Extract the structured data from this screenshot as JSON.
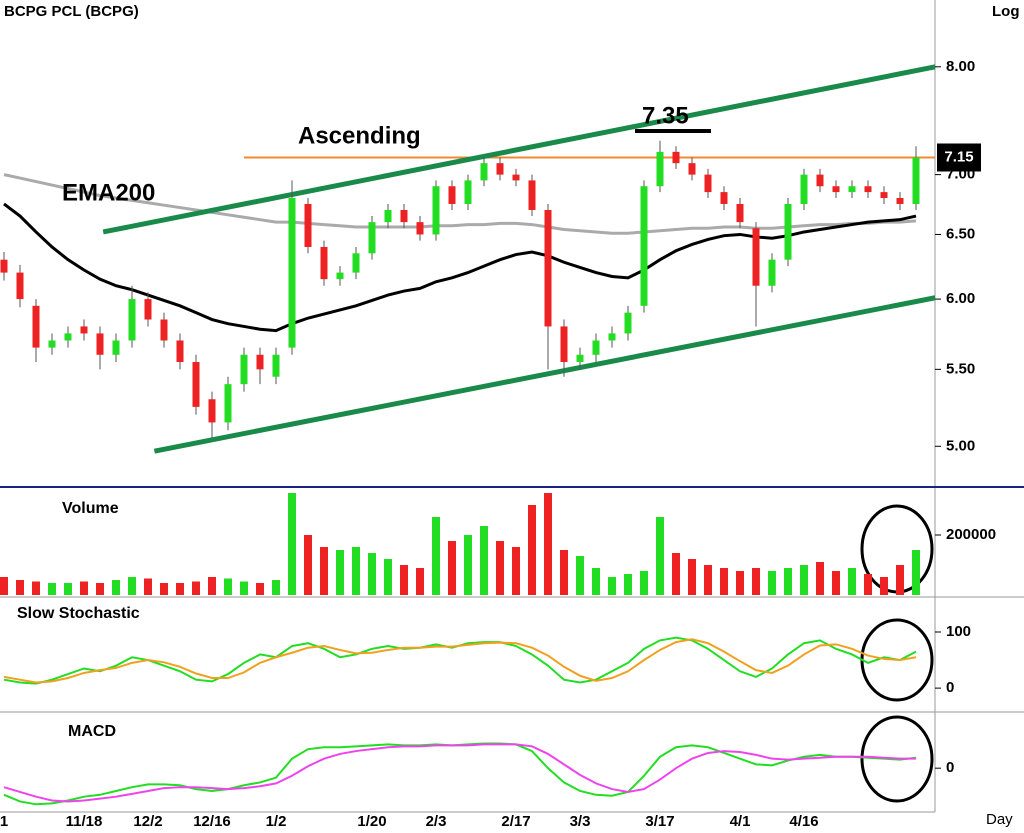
{
  "chart_data": [
    {
      "type": "candlestick",
      "title": "BCPG PCL (BCPG)",
      "scale_label": "Log",
      "log": true,
      "x_label": "Day",
      "categories": [
        "1",
        null,
        null,
        null,
        null,
        "11/18",
        null,
        null,
        null,
        "12/2",
        null,
        null,
        null,
        "12/16",
        null,
        null,
        null,
        "1/2",
        null,
        null,
        null,
        null,
        null,
        "1/20",
        null,
        null,
        null,
        "2/3",
        null,
        null,
        null,
        null,
        "2/17",
        null,
        null,
        null,
        "3/3",
        null,
        null,
        null,
        null,
        "3/17",
        null,
        null,
        null,
        null,
        "4/1",
        null,
        null,
        null,
        "4/16",
        null,
        null,
        null,
        null,
        null,
        null,
        null
      ],
      "open": [
        6.3,
        6.2,
        5.95,
        5.65,
        5.7,
        5.8,
        5.75,
        5.6,
        5.7,
        6.0,
        5.85,
        5.7,
        5.55,
        5.3,
        5.15,
        5.4,
        5.6,
        5.45,
        5.65,
        6.75,
        6.4,
        6.15,
        6.2,
        6.35,
        6.6,
        6.7,
        6.6,
        6.5,
        6.9,
        6.75,
        6.95,
        7.1,
        7.0,
        6.95,
        6.7,
        5.8,
        5.55,
        5.6,
        5.7,
        5.75,
        5.95,
        6.9,
        7.2,
        7.1,
        7.0,
        6.85,
        6.75,
        6.55,
        6.1,
        6.3,
        6.75,
        7.0,
        6.9,
        6.85,
        6.9,
        6.85,
        6.8,
        6.75
      ],
      "high": [
        6.36,
        6.26,
        6.0,
        5.75,
        5.8,
        5.85,
        5.8,
        5.75,
        6.1,
        6.05,
        5.9,
        5.75,
        5.6,
        5.35,
        5.45,
        5.65,
        5.65,
        5.65,
        6.95,
        6.8,
        6.45,
        6.25,
        6.4,
        6.65,
        6.75,
        6.75,
        6.65,
        6.95,
        6.95,
        7.0,
        7.15,
        7.15,
        7.05,
        7.0,
        6.75,
        5.85,
        5.65,
        5.75,
        5.8,
        5.95,
        6.95,
        7.3,
        7.25,
        7.15,
        7.05,
        6.9,
        6.8,
        6.6,
        6.35,
        6.8,
        7.05,
        7.05,
        6.95,
        6.95,
        6.95,
        6.9,
        6.85,
        7.25
      ],
      "low": [
        6.14,
        5.94,
        5.55,
        5.6,
        5.65,
        5.7,
        5.5,
        5.55,
        5.65,
        5.8,
        5.65,
        5.5,
        5.2,
        5.05,
        5.1,
        5.35,
        5.4,
        5.4,
        5.6,
        6.35,
        6.1,
        6.1,
        6.15,
        6.3,
        6.55,
        6.55,
        6.45,
        6.45,
        6.7,
        6.7,
        6.9,
        6.95,
        6.9,
        6.65,
        5.5,
        5.45,
        5.5,
        5.55,
        5.65,
        5.7,
        5.9,
        6.85,
        7.05,
        6.95,
        6.8,
        6.7,
        6.55,
        5.8,
        6.05,
        6.25,
        6.7,
        6.85,
        6.8,
        6.8,
        6.8,
        6.75,
        6.7,
        6.7
      ],
      "close": [
        6.2,
        6.0,
        5.65,
        5.7,
        5.75,
        5.75,
        5.6,
        5.7,
        6.0,
        5.85,
        5.7,
        5.55,
        5.25,
        5.15,
        5.4,
        5.6,
        5.5,
        5.6,
        6.8,
        6.4,
        6.15,
        6.2,
        6.35,
        6.6,
        6.7,
        6.6,
        6.5,
        6.9,
        6.75,
        6.95,
        7.1,
        7.0,
        6.95,
        6.7,
        5.8,
        5.55,
        5.6,
        5.7,
        5.75,
        5.9,
        6.9,
        7.2,
        7.1,
        7.0,
        6.85,
        6.75,
        6.6,
        6.1,
        6.3,
        6.75,
        7.0,
        6.9,
        6.85,
        6.9,
        6.85,
        6.8,
        6.75,
        7.15
      ],
      "up_color": "#22dd22",
      "down_color": "#ee2222",
      "series": [
        {
          "color": "#aaaaaa",
          "values": [
            7.0,
            6.97,
            6.94,
            6.91,
            6.88,
            6.85,
            6.82,
            6.8,
            6.78,
            6.76,
            6.74,
            6.72,
            6.7,
            6.68,
            6.66,
            6.64,
            6.62,
            6.6,
            6.6,
            6.59,
            6.58,
            6.57,
            6.56,
            6.56,
            6.56,
            6.56,
            6.56,
            6.57,
            6.57,
            6.58,
            6.58,
            6.59,
            6.59,
            6.58,
            6.56,
            6.54,
            6.53,
            6.52,
            6.51,
            6.51,
            6.52,
            6.53,
            6.54,
            6.55,
            6.55,
            6.56,
            6.56,
            6.55,
            6.55,
            6.56,
            6.57,
            6.58,
            6.58,
            6.59,
            6.59,
            6.6,
            6.6,
            6.61
          ]
        },
        {
          "color": "#000000",
          "values": [
            6.75,
            6.65,
            6.52,
            6.4,
            6.3,
            6.22,
            6.15,
            6.1,
            6.07,
            6.03,
            5.99,
            5.95,
            5.9,
            5.85,
            5.82,
            5.8,
            5.78,
            5.77,
            5.82,
            5.86,
            5.89,
            5.92,
            5.95,
            5.99,
            6.03,
            6.06,
            6.08,
            6.13,
            6.16,
            6.2,
            6.25,
            6.3,
            6.34,
            6.36,
            6.33,
            6.28,
            6.24,
            6.2,
            6.17,
            6.16,
            6.22,
            6.3,
            6.37,
            6.42,
            6.46,
            6.49,
            6.5,
            6.48,
            6.47,
            6.49,
            6.52,
            6.54,
            6.56,
            6.58,
            6.6,
            6.61,
            6.62,
            6.65
          ]
        }
      ],
      "trendlines": [
        {
          "color": "#f08a30",
          "x": [
            15,
            58.2
          ],
          "y": [
            7.15,
            7.15
          ]
        },
        {
          "color": "#1a8a4a",
          "x": [
            6.2,
            58.2
          ],
          "y": [
            6.52,
            8.0
          ]
        },
        {
          "color": "#1a8a4a",
          "x": [
            9.4,
            58.2
          ],
          "y": [
            4.97,
            6.01
          ]
        }
      ],
      "annotations": [
        "EMA200",
        "Ascending",
        "7.35"
      ],
      "last_label": {
        "value": 7.15,
        "label": "7.15"
      },
      "ylim": [
        4.76,
        8.69
      ],
      "yticks": [
        {
          "value": 5,
          "label": "5.00"
        },
        {
          "value": 5.5,
          "label": "5.50"
        },
        {
          "value": 6,
          "label": "6.00"
        },
        {
          "value": 6.5,
          "label": "6.50"
        },
        {
          "value": 7,
          "label": "7.00"
        },
        {
          "value": 8,
          "label": "8.00"
        }
      ]
    },
    {
      "type": "bar",
      "title": "Volume",
      "values": [
        60000,
        50000,
        45000,
        40000,
        40000,
        45000,
        40000,
        50000,
        60000,
        55000,
        40000,
        40000,
        45000,
        60000,
        55000,
        45000,
        40000,
        50000,
        340000,
        200000,
        160000,
        150000,
        160000,
        140000,
        120000,
        100000,
        90000,
        260000,
        180000,
        200000,
        230000,
        180000,
        160000,
        300000,
        340000,
        150000,
        130000,
        90000,
        60000,
        70000,
        80000,
        260000,
        140000,
        120000,
        100000,
        90000,
        80000,
        90000,
        80000,
        90000,
        100000,
        110000,
        80000,
        90000,
        70000,
        60000,
        100000,
        150000
      ],
      "ylim": [
        0,
        350000
      ],
      "yticks": [
        200000
      ]
    },
    {
      "type": "line",
      "title": "Slow Stochastic",
      "series": [
        {
          "color": "#22dd22",
          "values": [
            15,
            10,
            8,
            15,
            25,
            35,
            30,
            40,
            55,
            50,
            40,
            30,
            15,
            12,
            25,
            45,
            60,
            55,
            75,
            80,
            70,
            55,
            60,
            70,
            75,
            70,
            72,
            78,
            72,
            80,
            82,
            82,
            75,
            60,
            40,
            15,
            10,
            15,
            30,
            45,
            70,
            85,
            90,
            85,
            70,
            50,
            30,
            20,
            35,
            60,
            80,
            85,
            70,
            60,
            45,
            55,
            50,
            65
          ]
        },
        {
          "color": "#f0a020",
          "values": [
            20,
            15,
            10,
            12,
            18,
            27,
            32,
            36,
            45,
            50,
            46,
            38,
            26,
            18,
            18,
            28,
            45,
            55,
            63,
            72,
            75,
            68,
            62,
            63,
            68,
            72,
            72,
            74,
            74,
            77,
            80,
            81,
            80,
            72,
            58,
            38,
            22,
            13,
            18,
            30,
            50,
            68,
            82,
            87,
            80,
            65,
            48,
            32,
            27,
            40,
            60,
            76,
            78,
            70,
            58,
            52,
            50,
            55
          ]
        }
      ],
      "ylim": [
        -39,
        157
      ],
      "yticks": [
        0,
        100
      ]
    },
    {
      "type": "line",
      "title": "MACD",
      "series": [
        {
          "color": "#22dd22",
          "values": [
            -0.28,
            -0.35,
            -0.38,
            -0.37,
            -0.34,
            -0.3,
            -0.28,
            -0.24,
            -0.2,
            -0.17,
            -0.17,
            -0.18,
            -0.22,
            -0.24,
            -0.22,
            -0.18,
            -0.15,
            -0.1,
            0.1,
            0.2,
            0.22,
            0.22,
            0.23,
            0.24,
            0.25,
            0.24,
            0.24,
            0.25,
            0.24,
            0.25,
            0.26,
            0.26,
            0.25,
            0.18,
            0.0,
            -0.15,
            -0.24,
            -0.28,
            -0.29,
            -0.25,
            -0.08,
            0.12,
            0.22,
            0.24,
            0.22,
            0.16,
            0.1,
            0.04,
            0.03,
            0.08,
            0.12,
            0.14,
            0.12,
            0.12,
            0.11,
            0.1,
            0.09,
            0.11
          ]
        },
        {
          "color": "#ee44ee",
          "values": [
            -0.2,
            -0.25,
            -0.3,
            -0.34,
            -0.35,
            -0.34,
            -0.32,
            -0.3,
            -0.27,
            -0.24,
            -0.21,
            -0.2,
            -0.2,
            -0.21,
            -0.22,
            -0.21,
            -0.19,
            -0.16,
            -0.08,
            0.02,
            0.1,
            0.15,
            0.18,
            0.2,
            0.22,
            0.23,
            0.23,
            0.24,
            0.24,
            0.24,
            0.25,
            0.25,
            0.25,
            0.23,
            0.15,
            0.04,
            -0.07,
            -0.16,
            -0.22,
            -0.25,
            -0.22,
            -0.12,
            0.0,
            0.1,
            0.16,
            0.18,
            0.17,
            0.14,
            0.1,
            0.09,
            0.1,
            0.11,
            0.12,
            0.12,
            0.12,
            0.11,
            0.1,
            0.1
          ]
        }
      ],
      "ylim": [
        -0.44,
        0.57
      ],
      "yticks": [
        0
      ]
    }
  ]
}
